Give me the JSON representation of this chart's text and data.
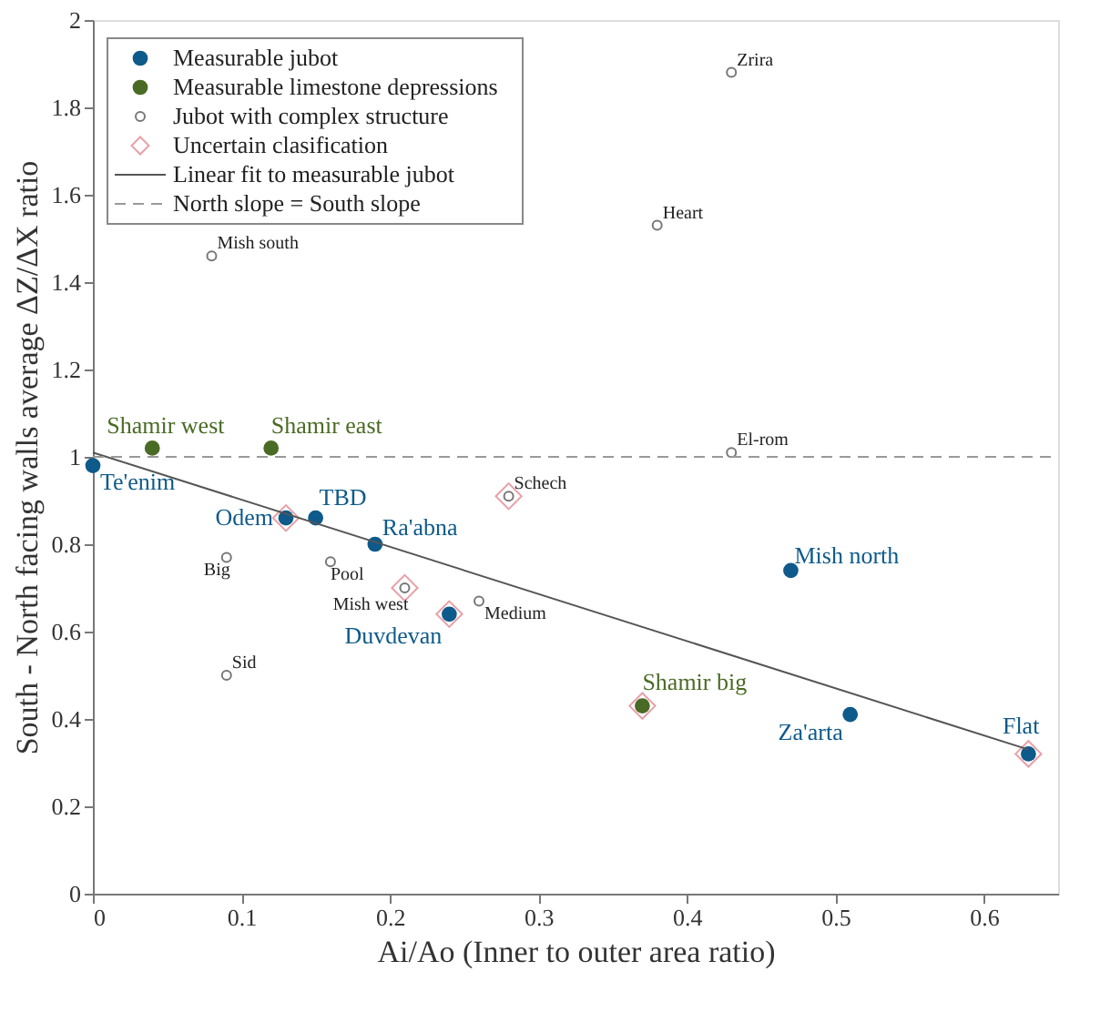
{
  "chart_data": {
    "type": "scatter",
    "xlabel": "Ai/Ao (Inner to outer area ratio)",
    "ylabel": "South - North facing walls average ΔZ/ΔX ratio",
    "xlim": [
      0,
      0.65
    ],
    "xticks": [
      0,
      0.1,
      0.2,
      0.3,
      0.4,
      0.5,
      0.6
    ],
    "ylim": [
      0,
      2
    ],
    "yticks": [
      0,
      0.2,
      0.4,
      0.6,
      0.8,
      1,
      1.2,
      1.4,
      1.6,
      1.8,
      2
    ],
    "grid": false,
    "legend": "top left",
    "series": [
      {
        "name": "Uncertain clasification",
        "marker": "diamond",
        "color": "#e8a0a8",
        "x": [
          0.13,
          0.21,
          0.24,
          0.28,
          0.37,
          0.63
        ],
        "values": [
          0.86,
          0.7,
          0.64,
          0.91,
          0.43,
          0.32
        ]
      },
      {
        "name": "Measurable jubot",
        "marker": "circle",
        "color": "#0e5a8a",
        "x": [
          0,
          0.13,
          0.15,
          0.19,
          0.24,
          0.47,
          0.51,
          0.63
        ],
        "values": [
          0.98,
          0.86,
          0.86,
          0.8,
          0.64,
          0.74,
          0.41,
          0.32
        ],
        "value_labels": [
          "Te'enim",
          "Odem",
          "TBD",
          "Ra'abna",
          "Duvdevan",
          "Mish north",
          "Za'arta",
          "Flat"
        ]
      },
      {
        "name": "Measurable limestone depressions",
        "marker": "circle",
        "color": "#4a6b25",
        "x": [
          0.04,
          0.12,
          0.37
        ],
        "values": [
          1.02,
          1.02,
          0.43
        ],
        "value_labels": [
          "Shamir west",
          "Shamir east",
          "Shamir big"
        ]
      },
      {
        "name": "Jubot with complex structure",
        "marker": "circle",
        "color": "#777777",
        "x": [
          0.08,
          0.43,
          0.38,
          0.43,
          0.28,
          0.09,
          0.16,
          0.21,
          0.26,
          0.09
        ],
        "values": [
          1.46,
          1.88,
          1.53,
          1.01,
          0.91,
          0.77,
          0.76,
          0.7,
          0.67,
          0.5
        ],
        "value_labels": [
          "Mish south",
          "Zrira",
          "Heart",
          "El-rom",
          "Schech",
          "Big",
          "Pool",
          "Mish west",
          "Medium",
          "Sid"
        ]
      },
      {
        "name": "Linear fit to measurable jubot",
        "type": "line",
        "line_style": "solid",
        "color": "#555555",
        "x": [
          0,
          0.63
        ],
        "values": [
          1.01,
          0.33
        ]
      }
    ],
    "ref_lines": [
      {
        "axis": "y",
        "value": 1,
        "label": "North slope = South slope",
        "color": "#999999",
        "line_style": "dashed"
      }
    ]
  }
}
